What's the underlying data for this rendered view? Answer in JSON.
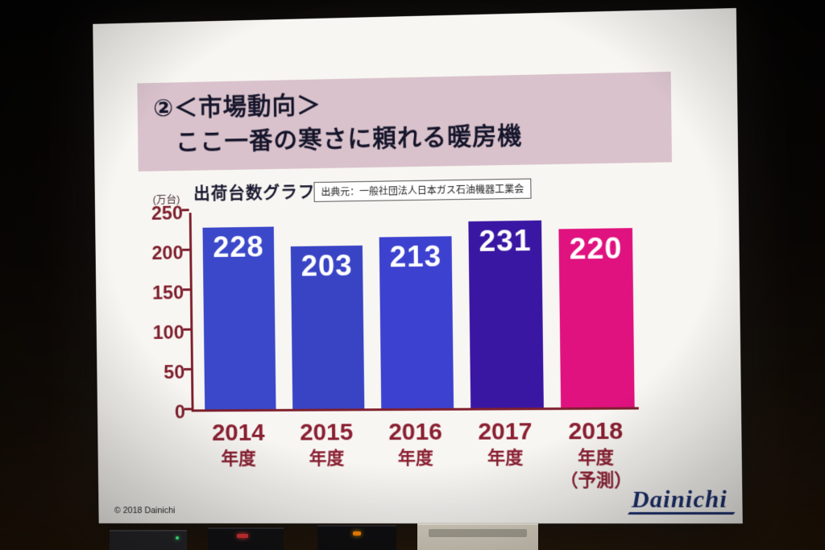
{
  "slide": {
    "title_line1": "②＜市場動向＞",
    "title_line2": "ここ一番の寒さに頼れる暖房機",
    "chart_label": "出荷台数グラフ",
    "unit_label": "(万台)",
    "source_label": "出典元：一般社団法人日本ガス石油機器工業会",
    "copyright": "© 2018 Dainichi",
    "logo_text": "Dainichi"
  },
  "chart_data": {
    "type": "bar",
    "title": "出荷台数グラフ",
    "source": "出典元：一般社団法人日本ガス石油機器工業会",
    "ylabel": "万台",
    "ylim": [
      0,
      250
    ],
    "yticks": [
      0,
      50,
      100,
      150,
      200,
      250
    ],
    "grid": false,
    "legend": "none",
    "categories": [
      "2014年度",
      "2015年度",
      "2016年度",
      "2017年度",
      "2018年度（予測）"
    ],
    "category_lines": [
      [
        "2014",
        "年度"
      ],
      [
        "2015",
        "年度"
      ],
      [
        "2016",
        "年度"
      ],
      [
        "2017",
        "年度"
      ],
      [
        "2018",
        "年度",
        "（予測）"
      ]
    ],
    "values": [
      228,
      203,
      213,
      231,
      220
    ],
    "bar_colors": [
      "#3b48c9",
      "#3944c5",
      "#3c42cf",
      "#3a17a3",
      "#e0127f"
    ],
    "value_label_color": "#ffffff",
    "axis_color": "#7e1f2d",
    "tick_label_color": "#8a2033"
  }
}
